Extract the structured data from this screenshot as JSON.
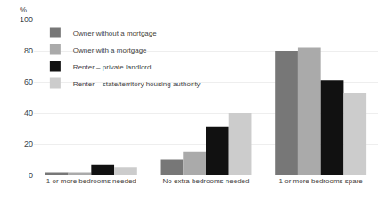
{
  "chart_data": {
    "type": "bar",
    "categories": [
      "1 or more bedrooms needed",
      "No extra bedrooms needed",
      "1 or more bedrooms spare"
    ],
    "series": [
      {
        "name": "Owner without a mortgage",
        "color": "#777777",
        "values": [
          2,
          10,
          80
        ]
      },
      {
        "name": "Owner with a mortgage",
        "color": "#aaaaaa",
        "values": [
          2,
          15,
          82
        ]
      },
      {
        "name": "Renter – private landlord",
        "color": "#111111",
        "values": [
          7,
          31,
          61
        ]
      },
      {
        "name": "Renter – state/territory housing authority",
        "color": "#cccccc",
        "values": [
          5,
          40,
          53
        ]
      }
    ],
    "ylabel": "%",
    "ylim": [
      0,
      100
    ],
    "yticks": [
      0,
      20,
      40,
      60,
      80,
      100
    ],
    "grid": true,
    "legend": "upper left"
  }
}
